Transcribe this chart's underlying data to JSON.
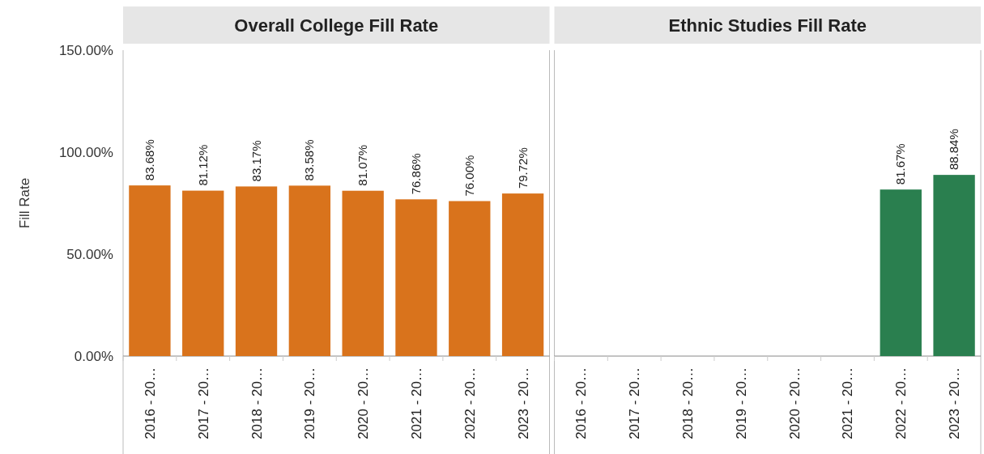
{
  "chart_data": [
    {
      "type": "bar",
      "title": "Overall College Fill Rate",
      "ylabel": "Fill Rate",
      "categories": [
        "2016 - 20…",
        "2017 - 20…",
        "2018 - 20…",
        "2019 - 20…",
        "2020 - 20…",
        "2021 - 20…",
        "2022 - 20…",
        "2023 - 20…"
      ],
      "series": [
        {
          "color": "#d9731c",
          "values": [
            83.68,
            81.12,
            83.17,
            83.58,
            81.07,
            76.86,
            76.0,
            79.72
          ],
          "value_labels": [
            "83.68%",
            "81.12%",
            "83.17%",
            "83.58%",
            "81.07%",
            "76.86%",
            "76.00%",
            "79.72%"
          ]
        }
      ],
      "ylim": [
        0,
        150
      ],
      "yticks": [
        {
          "value": 0,
          "label": "0.00%"
        },
        {
          "value": 50,
          "label": "50.00%"
        },
        {
          "value": 100,
          "label": "100.00%"
        },
        {
          "value": 150,
          "label": "150.00%"
        }
      ]
    },
    {
      "type": "bar",
      "title": "Ethnic Studies Fill Rate",
      "categories": [
        "2016 - 20…",
        "2017 - 20…",
        "2018 - 20…",
        "2019 - 20…",
        "2020 - 20…",
        "2021 - 20…",
        "2022 - 20…",
        "2023 - 20…"
      ],
      "series": [
        {
          "color": "#2a7f4f",
          "values": [
            null,
            null,
            null,
            null,
            null,
            null,
            81.67,
            88.84
          ],
          "value_labels": [
            null,
            null,
            null,
            null,
            null,
            null,
            "81.67%",
            "88.84%"
          ]
        }
      ],
      "ylim": [
        0,
        150
      ],
      "tick_labels": "x"
    }
  ]
}
